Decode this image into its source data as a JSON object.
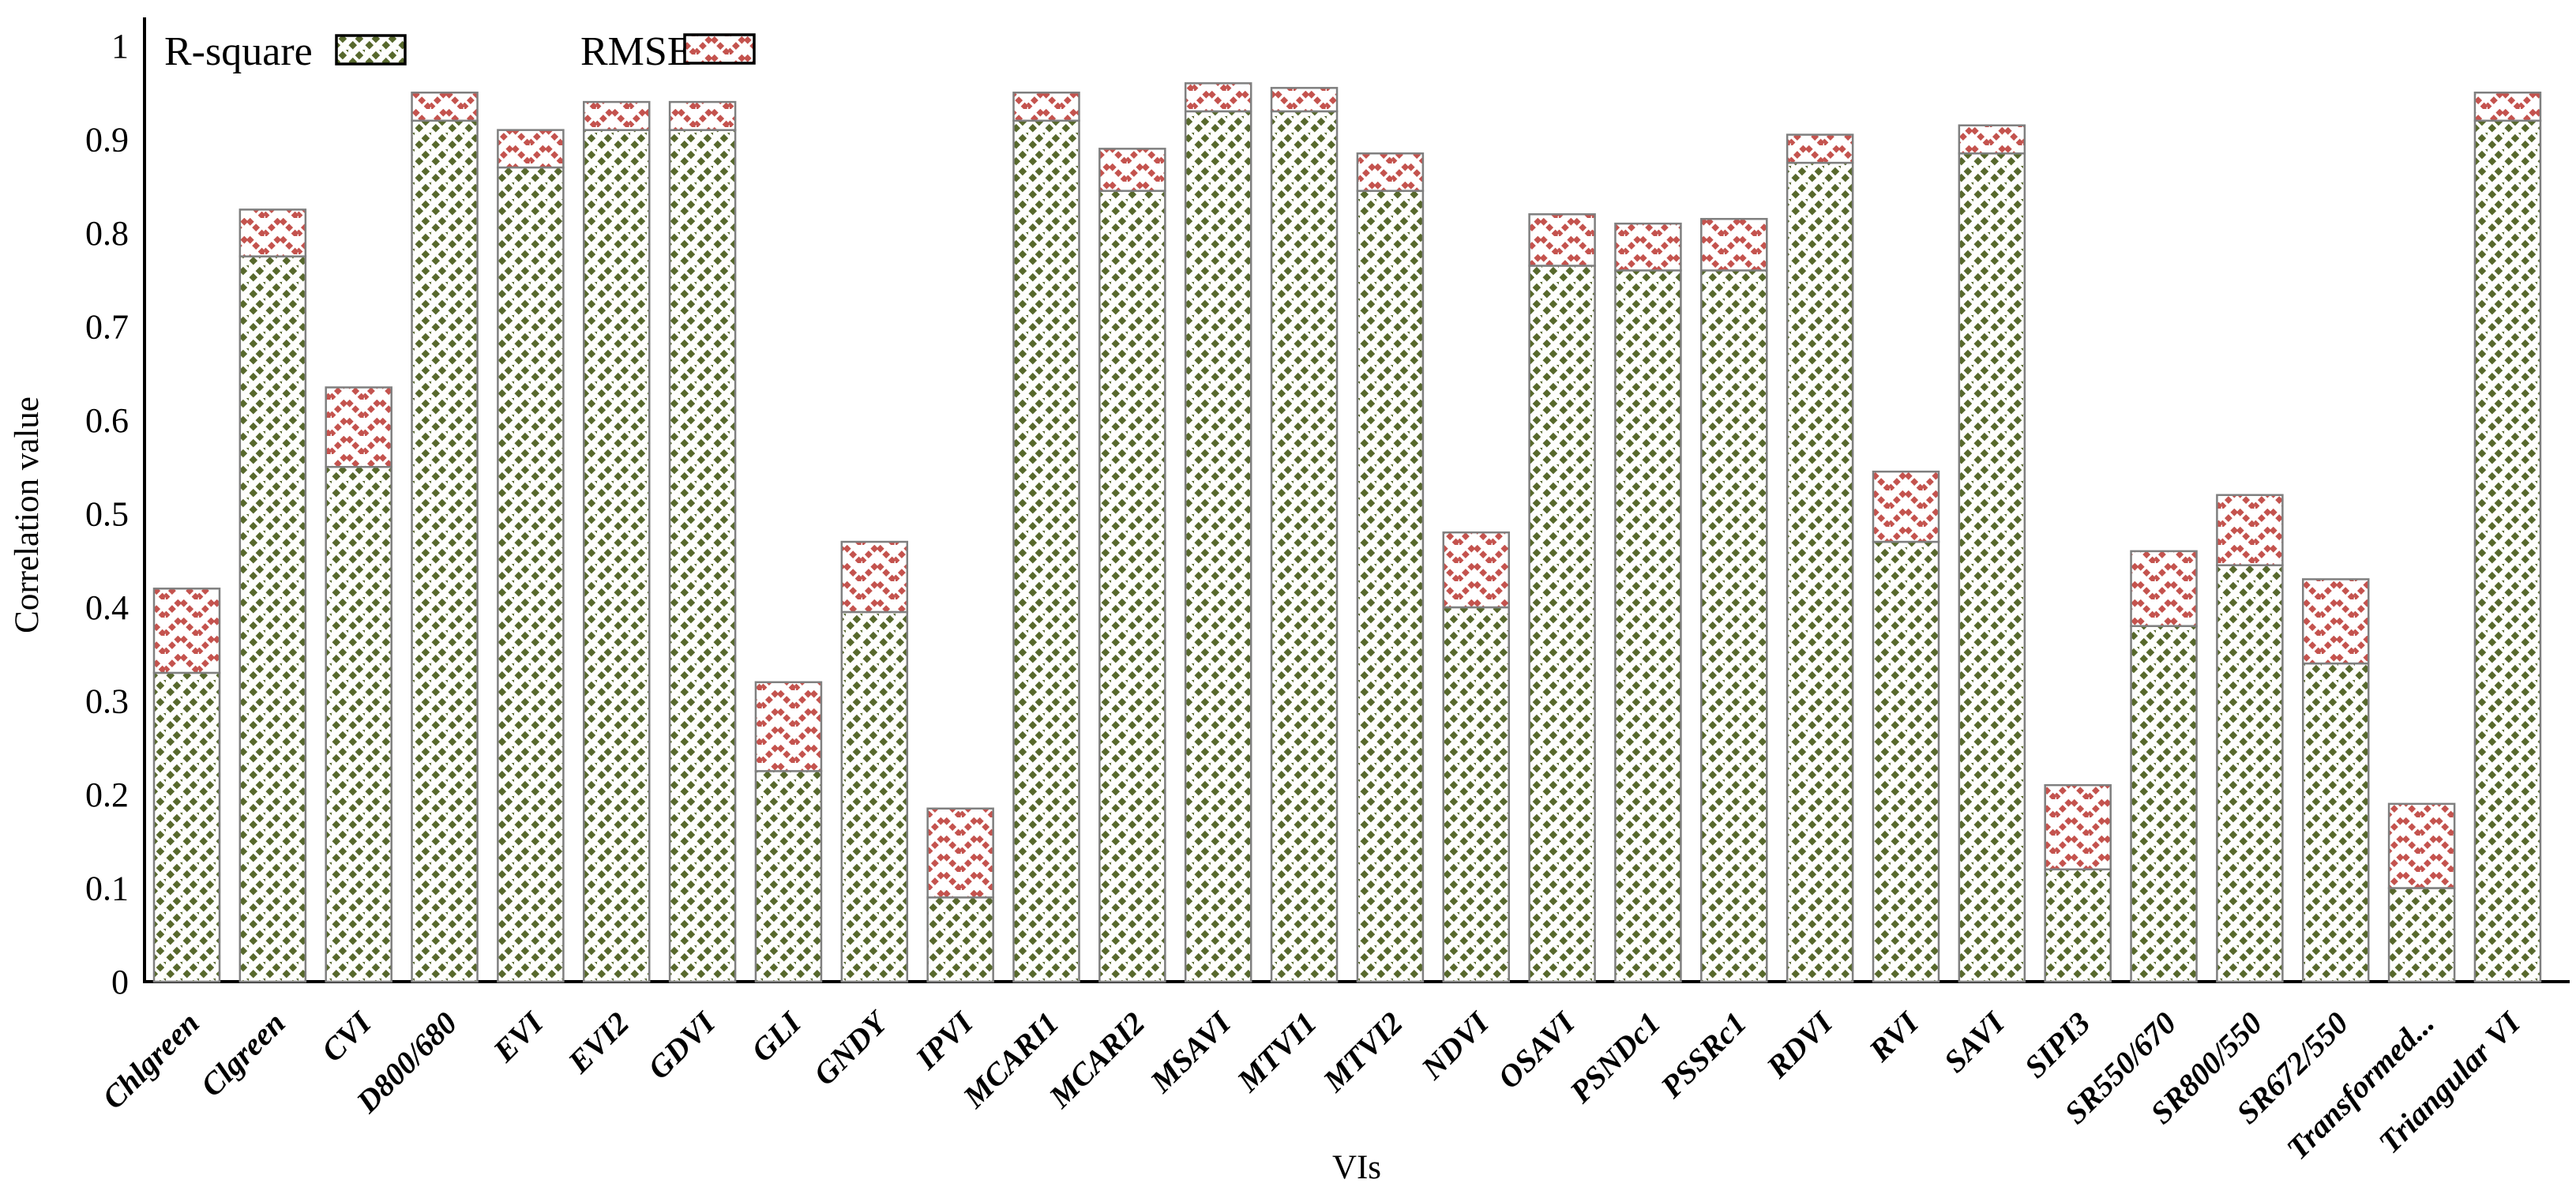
{
  "legend": {
    "r_square_label": "R-square",
    "rmse_label": "RMSE"
  },
  "axes": {
    "y_title": "Correlation value",
    "x_title": "VIs",
    "y_ticks": [
      "0",
      "0.1",
      "0.2",
      "0.3",
      "0.4",
      "0.5",
      "0.6",
      "0.7",
      "0.8",
      "0.9",
      "1"
    ],
    "y_min": 0,
    "y_max": 1
  },
  "colors": {
    "r_square": "#57682c",
    "rmse": "#c4534e",
    "bar_border": "#7f7f7f",
    "axis": "#000000",
    "legend_swatch_border": "#000000",
    "legend_swatch_bg": "#f1f1ec"
  },
  "chart_data": {
    "type": "bar",
    "stacked": true,
    "title": "",
    "xlabel": "VIs",
    "ylabel": "Correlation value",
    "ylim": [
      0,
      1
    ],
    "grid": false,
    "legend_position": "top-left",
    "categories": [
      "Chlgreen",
      "Clgreen",
      "CVI",
      "D800/680",
      "EVI",
      "EVI2",
      "GDVI",
      "GLI",
      "GNDY",
      "IPVI",
      "MCARI1",
      "MCARI2",
      "MSAVI",
      "MTVI1",
      "MTVI2",
      "NDVI",
      "OSAVI",
      "PSNDc1",
      "PSSRc1",
      "RDVI",
      "RVI",
      "SAVI",
      "SIPI3",
      "SR550/670",
      "SR800/550",
      "SR672/550",
      "Transformed...",
      "Triangular VI"
    ],
    "series": [
      {
        "name": "R-square",
        "values": [
          0.33,
          0.775,
          0.55,
          0.92,
          0.87,
          0.91,
          0.91,
          0.225,
          0.395,
          0.09,
          0.92,
          0.845,
          0.93,
          0.93,
          0.845,
          0.4,
          0.765,
          0.76,
          0.76,
          0.875,
          0.47,
          0.885,
          0.12,
          0.38,
          0.445,
          0.34,
          0.1,
          0.92
        ]
      },
      {
        "name": "RMSE",
        "values": [
          0.09,
          0.05,
          0.085,
          0.03,
          0.04,
          0.03,
          0.03,
          0.095,
          0.075,
          0.095,
          0.03,
          0.045,
          0.03,
          0.025,
          0.04,
          0.08,
          0.055,
          0.05,
          0.055,
          0.03,
          0.075,
          0.03,
          0.09,
          0.08,
          0.075,
          0.09,
          0.09,
          0.03
        ]
      }
    ],
    "stacked_totals": [
      0.42,
      0.825,
      0.635,
      0.95,
      0.91,
      0.94,
      0.94,
      0.32,
      0.47,
      0.185,
      0.95,
      0.89,
      0.96,
      0.955,
      0.885,
      0.48,
      0.82,
      0.81,
      0.815,
      0.905,
      0.545,
      0.915,
      0.21,
      0.46,
      0.52,
      0.43,
      0.19,
      0.95
    ]
  }
}
